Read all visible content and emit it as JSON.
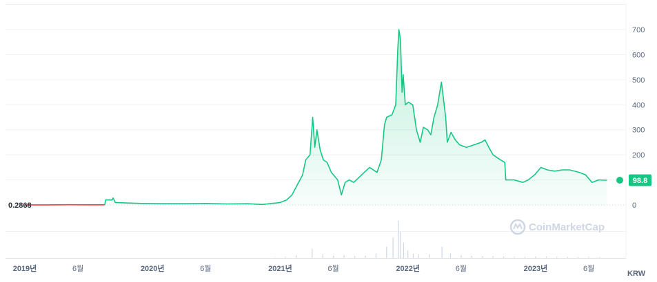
{
  "chart_data": {
    "type": "area",
    "y_ticks": [
      0,
      100,
      200,
      300,
      400,
      500,
      600,
      700
    ],
    "y_tick_labels": [
      "0",
      "100",
      "200",
      "300",
      "400",
      "500",
      "600",
      "700"
    ],
    "ylim": [
      -10,
      760
    ],
    "x_ticks": [
      {
        "label": "2019년",
        "t": 0,
        "bold": true
      },
      {
        "label": "6월",
        "t": 5,
        "bold": false
      },
      {
        "label": "2020년",
        "t": 12,
        "bold": true
      },
      {
        "label": "6월",
        "t": 17,
        "bold": false
      },
      {
        "label": "2021년",
        "t": 24,
        "bold": true
      },
      {
        "label": "6월",
        "t": 29,
        "bold": false
      },
      {
        "label": "2022년",
        "t": 36,
        "bold": true
      },
      {
        "label": "6월",
        "t": 41,
        "bold": false
      },
      {
        "label": "2023년",
        "t": 48,
        "bold": true
      },
      {
        "label": "6월",
        "t": 53,
        "bold": false
      }
    ],
    "start_label": "0.2868",
    "current_value_label": "98.8",
    "unit_label": "KRW",
    "watermark": "CoinMarketCap",
    "colors": {
      "line_up": "#16c784",
      "line_down": "#ea3943",
      "fill": "#16c784",
      "grid": "#eff2f5",
      "volume": "#cfd6e4"
    },
    "series": [
      {
        "values": [
          [
            0,
            0.29
          ],
          [
            2,
            0.3
          ],
          [
            4,
            0.8
          ],
          [
            6,
            0.5
          ],
          [
            7.5,
            0.6
          ],
          [
            7.6,
            20
          ],
          [
            8.2,
            20
          ],
          [
            8.3,
            28
          ],
          [
            8.5,
            10
          ],
          [
            9.5,
            8
          ],
          [
            11,
            6
          ],
          [
            13,
            5
          ],
          [
            15,
            5
          ],
          [
            17,
            6
          ],
          [
            19,
            4
          ],
          [
            21,
            5
          ],
          [
            22.3,
            2
          ],
          [
            23,
            5
          ],
          [
            24,
            10
          ],
          [
            24.6,
            20
          ],
          [
            25.1,
            40
          ],
          [
            25.6,
            80
          ],
          [
            26.1,
            120
          ],
          [
            26.4,
            180
          ],
          [
            26.8,
            200
          ],
          [
            27.05,
            350
          ],
          [
            27.25,
            230
          ],
          [
            27.45,
            300
          ],
          [
            27.75,
            220
          ],
          [
            28.05,
            180
          ],
          [
            28.4,
            170
          ],
          [
            28.8,
            130
          ],
          [
            29.4,
            100
          ],
          [
            29.75,
            40
          ],
          [
            30.1,
            90
          ],
          [
            30.5,
            100
          ],
          [
            30.9,
            90
          ],
          [
            31.4,
            110
          ],
          [
            31.9,
            130
          ],
          [
            32.4,
            150
          ],
          [
            33.1,
            130
          ],
          [
            33.5,
            180
          ],
          [
            33.8,
            320
          ],
          [
            34,
            350
          ],
          [
            34.5,
            360
          ],
          [
            34.85,
            400
          ],
          [
            35.05,
            620
          ],
          [
            35.15,
            700
          ],
          [
            35.3,
            660
          ],
          [
            35.45,
            450
          ],
          [
            35.55,
            520
          ],
          [
            35.75,
            400
          ],
          [
            36.05,
            410
          ],
          [
            36.45,
            400
          ],
          [
            36.8,
            300
          ],
          [
            37.15,
            250
          ],
          [
            37.45,
            310
          ],
          [
            37.85,
            300
          ],
          [
            38.15,
            280
          ],
          [
            38.45,
            350
          ],
          [
            38.8,
            400
          ],
          [
            38.95,
            440
          ],
          [
            39.15,
            490
          ],
          [
            39.35,
            420
          ],
          [
            39.55,
            350
          ],
          [
            39.7,
            250
          ],
          [
            40.05,
            290
          ],
          [
            40.45,
            260
          ],
          [
            40.85,
            240
          ],
          [
            41.5,
            230
          ],
          [
            42.2,
            240
          ],
          [
            42.9,
            250
          ],
          [
            43.25,
            260
          ],
          [
            43.6,
            230
          ],
          [
            44,
            200
          ],
          [
            44.7,
            180
          ],
          [
            45.1,
            170
          ],
          [
            45.2,
            100
          ],
          [
            46,
            100
          ],
          [
            46.8,
            90
          ],
          [
            47.3,
            100
          ],
          [
            47.9,
            120
          ],
          [
            48.5,
            150
          ],
          [
            49.1,
            140
          ],
          [
            49.8,
            135
          ],
          [
            50.5,
            140
          ],
          [
            51.2,
            140
          ],
          [
            52.1,
            130
          ],
          [
            52.7,
            120
          ],
          [
            53.3,
            90
          ],
          [
            53.9,
            100
          ],
          [
            54.4,
            99
          ],
          [
            54.7,
            98.8
          ]
        ]
      }
    ],
    "volume": [
      [
        23.5,
        1
      ],
      [
        24.5,
        3
      ],
      [
        25.5,
        8
      ],
      [
        27,
        25
      ],
      [
        28,
        10
      ],
      [
        29,
        6
      ],
      [
        30,
        8
      ],
      [
        31,
        5
      ],
      [
        32,
        6
      ],
      [
        33,
        12
      ],
      [
        34,
        30
      ],
      [
        34.6,
        55
      ],
      [
        35.1,
        100
      ],
      [
        35.3,
        70
      ],
      [
        35.6,
        40
      ],
      [
        36,
        20
      ],
      [
        36.5,
        12
      ],
      [
        37,
        10
      ],
      [
        38,
        10
      ],
      [
        39.2,
        30
      ],
      [
        40,
        12
      ],
      [
        41,
        8
      ],
      [
        42,
        6
      ],
      [
        43,
        5
      ],
      [
        44,
        5
      ],
      [
        45,
        4
      ],
      [
        46,
        3
      ],
      [
        47,
        3
      ],
      [
        48,
        4
      ],
      [
        49,
        4
      ],
      [
        50,
        3
      ],
      [
        51,
        3
      ],
      [
        52,
        3
      ],
      [
        53,
        3
      ],
      [
        54,
        2
      ]
    ]
  }
}
